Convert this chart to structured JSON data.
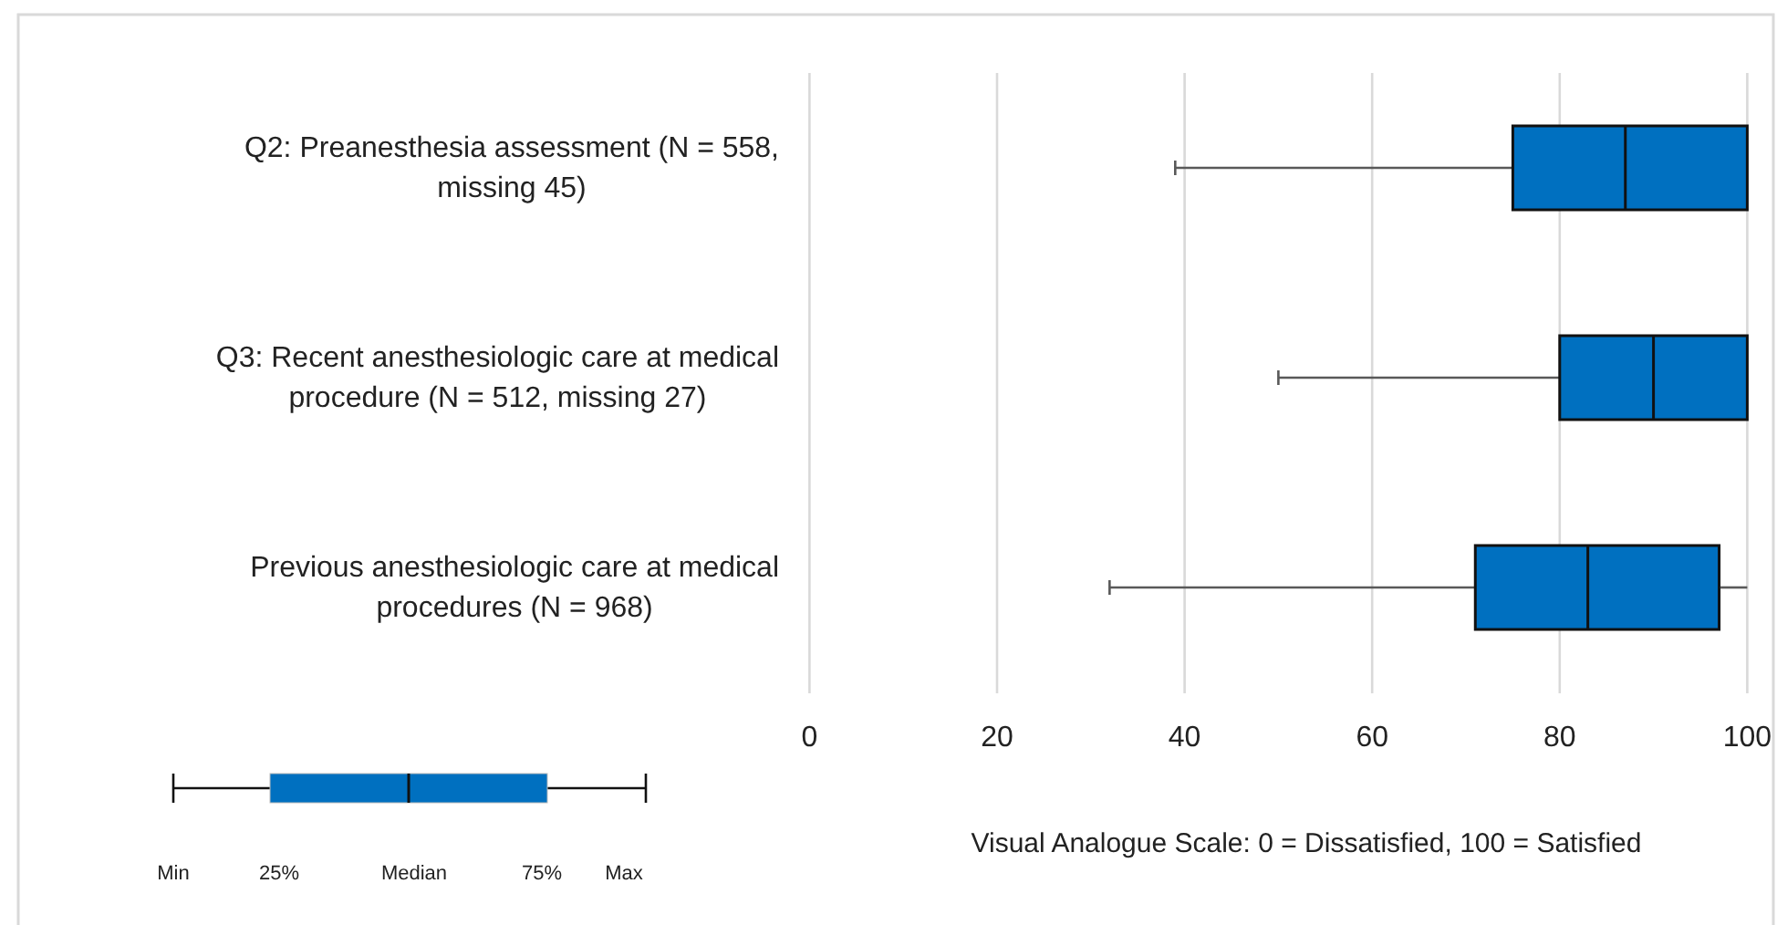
{
  "chart_data": {
    "type": "box",
    "orientation": "horizontal",
    "categories": [
      "Q2: Preanesthesia assessment (N = 558, missing 45)",
      "Q3: Recent anesthesiologic care at medical procedure (N = 512, missing 27)",
      "Previous anesthesiologic care at medical procedures (N = 968)"
    ],
    "boxes": [
      {
        "low": 39,
        "q1": 75,
        "median": 87,
        "q3": 100,
        "high": 100
      },
      {
        "low": 50,
        "q1": 80,
        "median": 90,
        "q3": 100,
        "high": 100
      },
      {
        "low": 32,
        "q1": 71,
        "median": 83,
        "q3": 97,
        "high": 100
      }
    ],
    "color": "#0070c0",
    "xlim": [
      0,
      100
    ],
    "xticks": [
      0,
      20,
      40,
      60,
      80,
      100
    ],
    "grid": "x",
    "xlabel": "Visual Analogue Scale: 0 = Dissatisfied, 100 = Satisfied",
    "annotations": [
      "Min",
      "25%",
      "Median",
      "75%",
      "Max"
    ]
  }
}
